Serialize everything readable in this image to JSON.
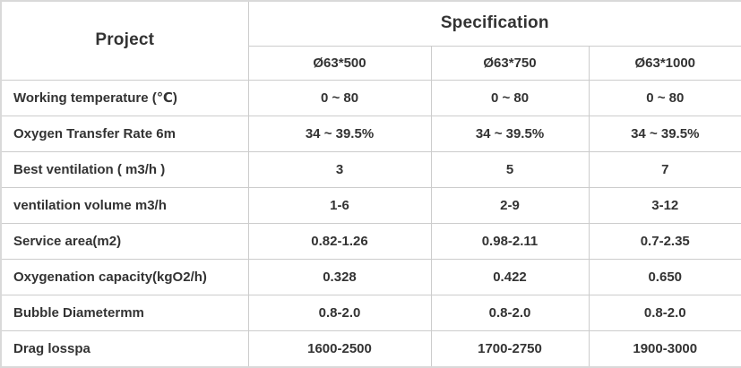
{
  "table": {
    "project_header": "Project",
    "spec_header": "Specification",
    "spec_columns": [
      "Ø63*500",
      "Ø63*750",
      "Ø63*1000"
    ],
    "rows": [
      {
        "label": "Working temperature (℃)",
        "values": [
          "0 ~ 80",
          "0 ~ 80",
          "0 ~ 80"
        ]
      },
      {
        "label": "Oxygen Transfer Rate 6m",
        "values": [
          "34 ~ 39.5%",
          "34 ~ 39.5%",
          "34 ~ 39.5%"
        ]
      },
      {
        "label": "Best ventilation  ( m3/h )",
        "values": [
          "3",
          "5",
          "7"
        ]
      },
      {
        "label": "ventilation volume m3/h",
        "values": [
          "1-6",
          "2-9",
          "3-12"
        ]
      },
      {
        "label": "Service area(m2)",
        "values": [
          "0.82-1.26",
          "0.98-2.11",
          "0.7-2.35"
        ]
      },
      {
        "label": "Oxygenation capacity(kgO2/h)",
        "values": [
          "0.328",
          "0.422",
          "0.650"
        ]
      },
      {
        "label": "Bubble Diametermm",
        "values": [
          "0.8-2.0",
          "0.8-2.0",
          "0.8-2.0"
        ]
      },
      {
        "label": "Drag losspa",
        "values": [
          "1600-2500",
          "1700-2750",
          "1900-3000"
        ]
      }
    ],
    "colors": {
      "border": "#cccccc",
      "outer_border": "#d9d9d9",
      "text": "#333333",
      "background": "#ffffff"
    }
  },
  "chart_data": {
    "type": "table",
    "title": "Specification",
    "columns": [
      "Project",
      "Ø63*500",
      "Ø63*750",
      "Ø63*1000"
    ],
    "rows": [
      [
        "Working temperature (℃)",
        "0 ~ 80",
        "0 ~ 80",
        "0 ~ 80"
      ],
      [
        "Oxygen Transfer Rate 6m",
        "34 ~ 39.5%",
        "34 ~ 39.5%",
        "34 ~ 39.5%"
      ],
      [
        "Best ventilation  ( m3/h )",
        "3",
        "5",
        "7"
      ],
      [
        "ventilation volume m3/h",
        "1-6",
        "2-9",
        "3-12"
      ],
      [
        "Service area(m2)",
        "0.82-1.26",
        "0.98-2.11",
        "0.7-2.35"
      ],
      [
        "Oxygenation capacity(kgO2/h)",
        "0.328",
        "0.422",
        "0.650"
      ],
      [
        "Bubble Diametermm",
        "0.8-2.0",
        "0.8-2.0",
        "0.8-2.0"
      ],
      [
        "Drag losspa",
        "1600-2500",
        "1700-2750",
        "1900-3000"
      ]
    ]
  }
}
